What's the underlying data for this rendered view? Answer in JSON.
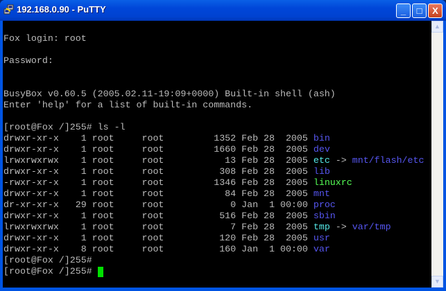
{
  "window": {
    "title": "192.168.0.90 - PuTTY",
    "minimize": "_",
    "maximize": "□",
    "close": "X"
  },
  "colors": {
    "text": "#bbbbbb",
    "directory": "#5656f0",
    "symlink": "#55e8e8",
    "executable": "#55ff55",
    "cursor": "#00e000"
  },
  "terminal": {
    "lines": [
      [],
      [
        {
          "t": "Fox login: root",
          "c": "w"
        }
      ],
      [],
      [
        {
          "t": "Password:",
          "c": "w"
        }
      ],
      [],
      [],
      [
        {
          "t": "BusyBox v0.60.5 (2005.02.11-19:09+0000) Built-in shell (ash)",
          "c": "w"
        }
      ],
      [
        {
          "t": "Enter 'help' for a list of built-in commands.",
          "c": "w"
        }
      ],
      [],
      [
        {
          "t": "[root@Fox /]255# ls -l",
          "c": "w"
        }
      ],
      [
        {
          "t": "drwxr-xr-x    1 root     root         1352 Feb 28  2005 ",
          "c": "w"
        },
        {
          "t": "bin",
          "c": "b"
        }
      ],
      [
        {
          "t": "drwxr-xr-x    1 root     root         1660 Feb 28  2005 ",
          "c": "w"
        },
        {
          "t": "dev",
          "c": "b"
        }
      ],
      [
        {
          "t": "lrwxrwxrwx    1 root     root           13 Feb 28  2005 ",
          "c": "w"
        },
        {
          "t": "etc",
          "c": "c"
        },
        {
          "t": " -> ",
          "c": "w"
        },
        {
          "t": "mnt/flash/etc",
          "c": "b"
        }
      ],
      [
        {
          "t": "drwxr-xr-x    1 root     root          308 Feb 28  2005 ",
          "c": "w"
        },
        {
          "t": "lib",
          "c": "b"
        }
      ],
      [
        {
          "t": "-rwxr-xr-x    1 root     root         1346 Feb 28  2005 ",
          "c": "w"
        },
        {
          "t": "linuxrc",
          "c": "g"
        }
      ],
      [
        {
          "t": "drwxr-xr-x    1 root     root           84 Feb 28  2005 ",
          "c": "w"
        },
        {
          "t": "mnt",
          "c": "b"
        }
      ],
      [
        {
          "t": "dr-xr-xr-x   29 root     root            0 Jan  1 00:00 ",
          "c": "w"
        },
        {
          "t": "proc",
          "c": "b"
        }
      ],
      [
        {
          "t": "drwxr-xr-x    1 root     root          516 Feb 28  2005 ",
          "c": "w"
        },
        {
          "t": "sbin",
          "c": "b"
        }
      ],
      [
        {
          "t": "lrwxrwxrwx    1 root     root            7 Feb 28  2005 ",
          "c": "w"
        },
        {
          "t": "tmp",
          "c": "c"
        },
        {
          "t": " -> ",
          "c": "w"
        },
        {
          "t": "var/tmp",
          "c": "b"
        }
      ],
      [
        {
          "t": "drwxr-xr-x    1 root     root          120 Feb 28  2005 ",
          "c": "w"
        },
        {
          "t": "usr",
          "c": "b"
        }
      ],
      [
        {
          "t": "drwxr-xr-x    8 root     root          160 Jan  1 00:00 ",
          "c": "w"
        },
        {
          "t": "var",
          "c": "b"
        }
      ],
      [
        {
          "t": "[root@Fox /]255#",
          "c": "w"
        }
      ],
      [
        {
          "t": "[root@Fox /]255# ",
          "c": "w"
        }
      ]
    ],
    "cursor_line": 22
  }
}
